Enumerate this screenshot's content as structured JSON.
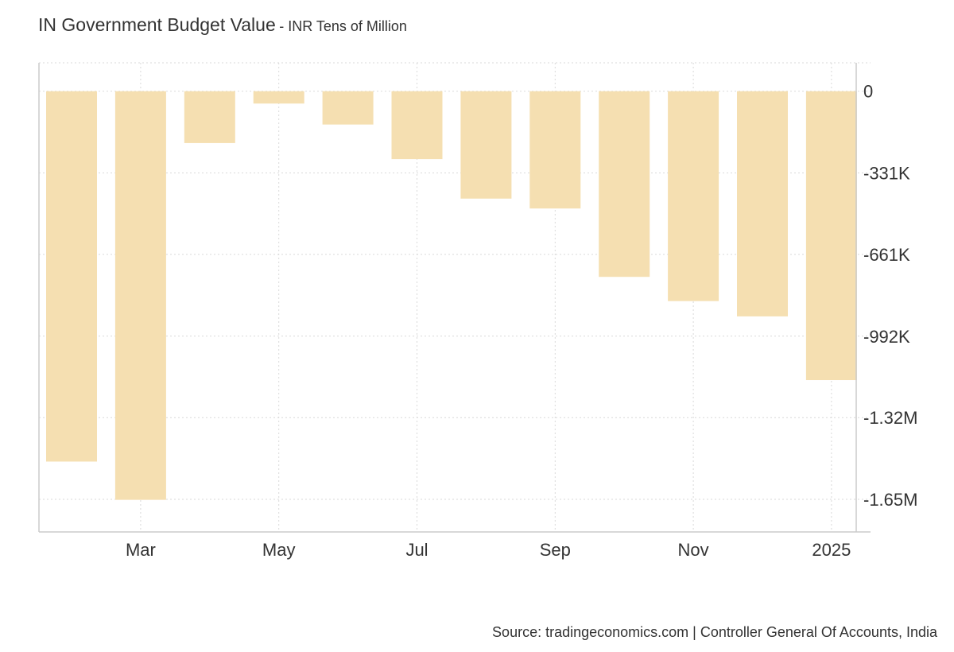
{
  "header": {
    "title": "IN Government Budget Value",
    "subtitle": "- INR Tens of Million"
  },
  "footer": {
    "source": "Source: tradingeconomics.com | Controller General Of Accounts, India"
  },
  "colors": {
    "bar": "#f5dfb1",
    "grid": "#d9d9d9",
    "axis": "#cccccc",
    "text": "#333333"
  },
  "chart_data": {
    "type": "bar",
    "categories": [
      "2024-01",
      "2024-02",
      "2024-03",
      "2024-04",
      "2024-05",
      "2024-06",
      "2024-07",
      "2024-08",
      "2024-09",
      "2024-10",
      "2024-11",
      "2024-12"
    ],
    "values": [
      -1500000,
      -1655000,
      -210000,
      -50000,
      -135000,
      -275000,
      -435000,
      -475000,
      -752000,
      -850000,
      -912000,
      -1170000
    ],
    "xticks": [
      {
        "label": "Mar",
        "at": "2024-02"
      },
      {
        "label": "May",
        "at": "2024-04"
      },
      {
        "label": "Jul",
        "at": "2024-06"
      },
      {
        "label": "Sep",
        "at": "2024-08"
      },
      {
        "label": "Nov",
        "at": "2024-10"
      },
      {
        "label": "2025",
        "at": "2024-12"
      }
    ],
    "yticks": [
      {
        "value": 0,
        "label": "0"
      },
      {
        "value": -331000,
        "label": "-331K"
      },
      {
        "value": -661000,
        "label": "-661K"
      },
      {
        "value": -992000,
        "label": "-992K"
      },
      {
        "value": -1322000,
        "label": "-1.32M"
      },
      {
        "value": -1653000,
        "label": "-1.65M"
      }
    ],
    "ylim": [
      -1785000,
      115000
    ],
    "grid": true,
    "legend": "none"
  }
}
